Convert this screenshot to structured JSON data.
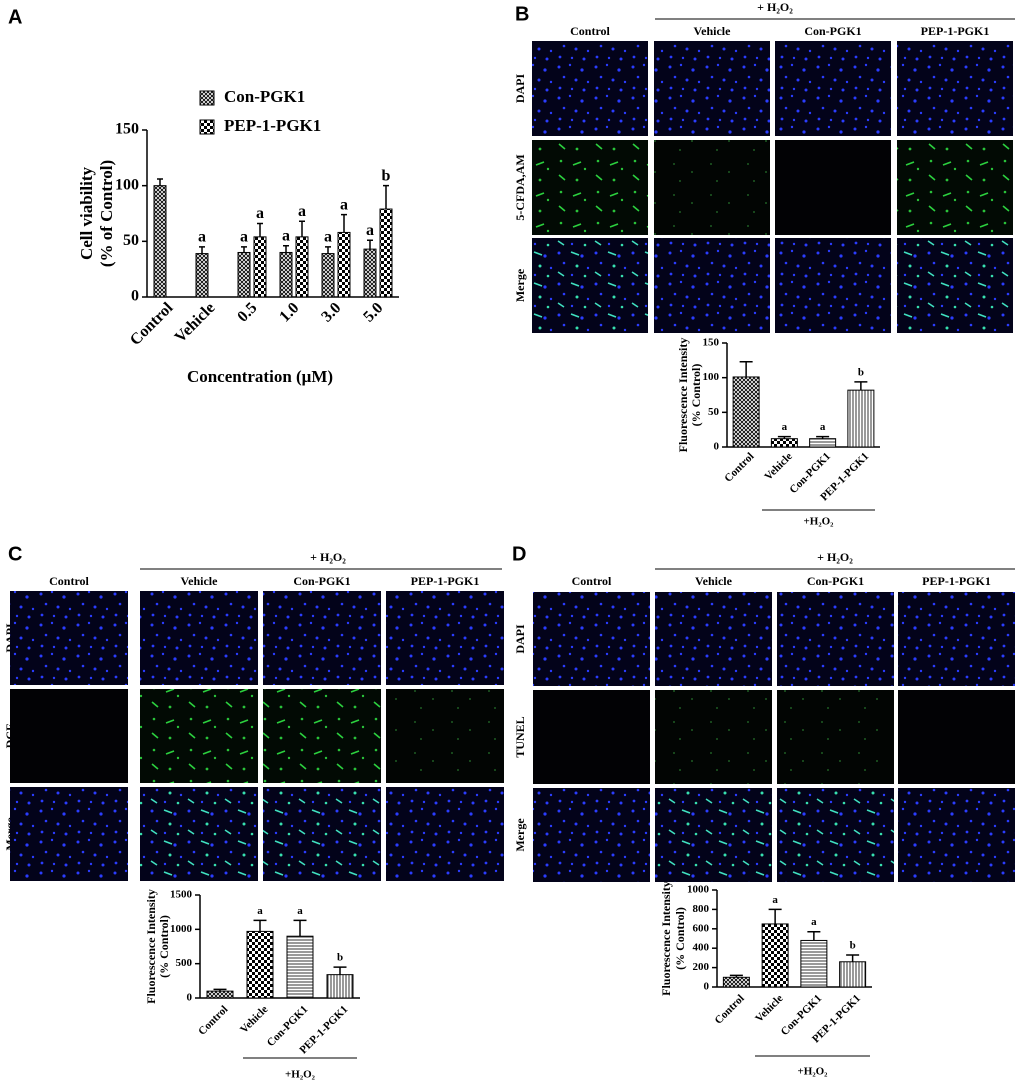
{
  "chart_data": [
    {
      "type": "bar",
      "panel": "A",
      "ylabel": [
        "Cell viability",
        "(% of Control)"
      ],
      "xlabel": "Concentration (μM)",
      "categories": [
        "Control",
        "Vehicle",
        "0.5",
        "1.0",
        "3.0",
        "5.0"
      ],
      "series": [
        {
          "name": "Con-PGK1",
          "pattern": "crosshatch",
          "values": [
            100,
            39,
            40,
            40,
            39,
            43
          ],
          "errors": [
            6,
            6,
            5,
            6,
            6,
            8
          ],
          "annotations": [
            null,
            "a",
            "a",
            "a",
            "a",
            "a"
          ]
        },
        {
          "name": "PEP-1-PGK1",
          "pattern": "checker",
          "values": [
            null,
            null,
            54,
            54,
            58,
            79
          ],
          "errors": [
            null,
            null,
            12,
            14,
            16,
            21
          ],
          "annotations": [
            null,
            null,
            "a",
            "a",
            "a",
            "b"
          ]
        }
      ],
      "ylim": [
        0,
        150
      ],
      "yticks": [
        0,
        50,
        100,
        150
      ],
      "legend": "top-left"
    },
    {
      "type": "bar",
      "ylabel": [
        "Fluorescence Intensity",
        "(% Control)"
      ],
      "group_label": "+H₂O₂",
      "categories": [
        "Control",
        "Vehicle",
        "Con-PGK1",
        "PEP-1-PGK1"
      ],
      "values": [
        101,
        12,
        12,
        82
      ],
      "errors": [
        22,
        3,
        3,
        12
      ],
      "annotations": [
        null,
        "a",
        "a",
        "b"
      ],
      "patterns": [
        "crosshatch",
        "checker",
        "hatch-h",
        "hatch-v"
      ],
      "ylim": [
        0,
        150
      ],
      "yticks": [
        0,
        50,
        100,
        150
      ]
    },
    {
      "type": "bar",
      "ylabel": [
        "Fluorescence Intensity",
        "(% Control)"
      ],
      "group_label": "+H₂O₂",
      "categories": [
        "Control",
        "Vehicle",
        "Con-PGK1",
        "PEP-1-PGK1"
      ],
      "values": [
        100,
        970,
        900,
        340
      ],
      "errors": [
        25,
        160,
        230,
        110
      ],
      "annotations": [
        null,
        "a",
        "a",
        "b"
      ],
      "patterns": [
        "crosshatch",
        "checker",
        "hatch-h",
        "hatch-v"
      ],
      "ylim": [
        0,
        1500
      ],
      "yticks": [
        0,
        500,
        1000,
        1500
      ]
    },
    {
      "type": "bar",
      "ylabel": [
        "Fluorescence Intensity",
        "(% Control)"
      ],
      "group_label": "+H₂O₂",
      "categories": [
        "Control",
        "Vehicle",
        "Con-PGK1",
        "PEP-1-PGK1"
      ],
      "values": [
        100,
        650,
        480,
        260
      ],
      "errors": [
        20,
        150,
        90,
        70
      ],
      "annotations": [
        null,
        "a",
        "a",
        "b"
      ],
      "patterns": [
        "crosshatch",
        "checker",
        "hatch-h",
        "hatch-v"
      ],
      "ylim": [
        0,
        1000
      ],
      "yticks": [
        0,
        200,
        400,
        600,
        800,
        1000
      ]
    }
  ],
  "panels": [
    {
      "label": "B",
      "treatment": "+ H₂O₂",
      "columns": [
        "Control",
        "Vehicle",
        "Con-PGK1",
        "PEP-1-PGK1"
      ],
      "rows": [
        "DAPI",
        "5-CFDA,AM",
        "Merge"
      ]
    },
    {
      "label": "C",
      "treatment": "+ H₂O₂",
      "columns": [
        "Control",
        "Vehicle",
        "Con-PGK1",
        "PEP-1-PGK1"
      ],
      "rows": [
        "DAPI",
        "DCF",
        "Merge"
      ]
    },
    {
      "label": "D",
      "treatment": "+ H₂O₂",
      "columns": [
        "Control",
        "Vehicle",
        "Con-PGK1",
        "PEP-1-PGK1"
      ],
      "rows": [
        "DAPI",
        "TUNEL",
        "Merge"
      ]
    }
  ]
}
